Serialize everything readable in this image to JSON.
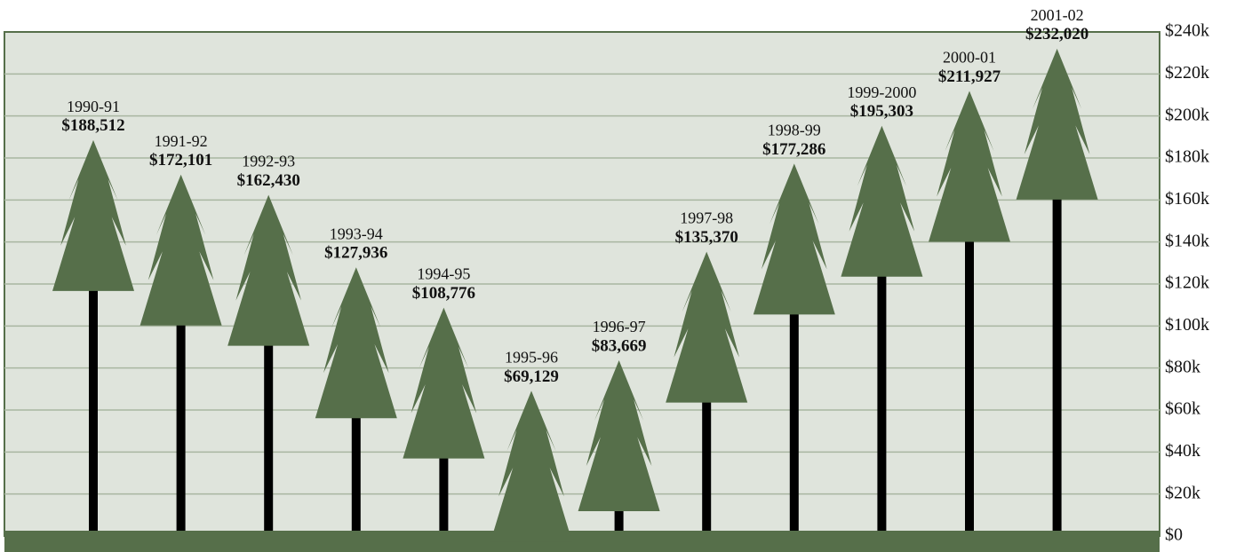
{
  "chart_data": {
    "type": "tree-pictograph",
    "categories": [
      "1990-91",
      "1991-92",
      "1992-93",
      "1993-94",
      "1994-95",
      "1995-96",
      "1996-97",
      "1997-98",
      "1998-99",
      "1999-2000",
      "2000-01",
      "2001-02"
    ],
    "values": [
      188512,
      172101,
      162430,
      127936,
      108776,
      69129,
      83669,
      135370,
      177286,
      195303,
      211927,
      232020
    ],
    "value_labels": [
      "$188,512",
      "$172,101",
      "$162,430",
      "$127,936",
      "$108,776",
      "$69,129",
      "$83,669",
      "$135,370",
      "$177,286",
      "$195,303",
      "$211,927",
      "$232,020"
    ],
    "color": "#566f4a",
    "ylim": [
      0,
      240000
    ],
    "yticks": [
      {
        "value": 0,
        "label": "$0"
      },
      {
        "value": 20000,
        "label": "$20k"
      },
      {
        "value": 40000,
        "label": "$40k"
      },
      {
        "value": 60000,
        "label": "$60k"
      },
      {
        "value": 80000,
        "label": "$80k"
      },
      {
        "value": 100000,
        "label": "$100k"
      },
      {
        "value": 120000,
        "label": "$120k"
      },
      {
        "value": 140000,
        "label": "$140k"
      },
      {
        "value": 160000,
        "label": "$160k"
      },
      {
        "value": 180000,
        "label": "$180k"
      },
      {
        "value": 200000,
        "label": "$200k"
      },
      {
        "value": 220000,
        "label": "$220k"
      },
      {
        "value": 240000,
        "label": "$240k"
      }
    ],
    "grid": true
  }
}
